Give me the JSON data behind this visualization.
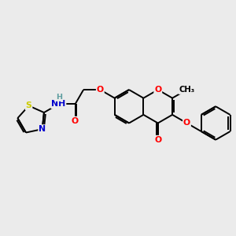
{
  "bg_color": "#ebebeb",
  "bond_color": "#000000",
  "bond_lw": 1.4,
  "atom_colors": {
    "O": "#ff0000",
    "N": "#0000cd",
    "S": "#cccc00",
    "H_color": "#5f9ea0"
  },
  "fig_size": [
    3.0,
    3.0
  ],
  "dpi": 100,
  "xlim": [
    0,
    10
  ],
  "ylim": [
    0,
    10
  ]
}
